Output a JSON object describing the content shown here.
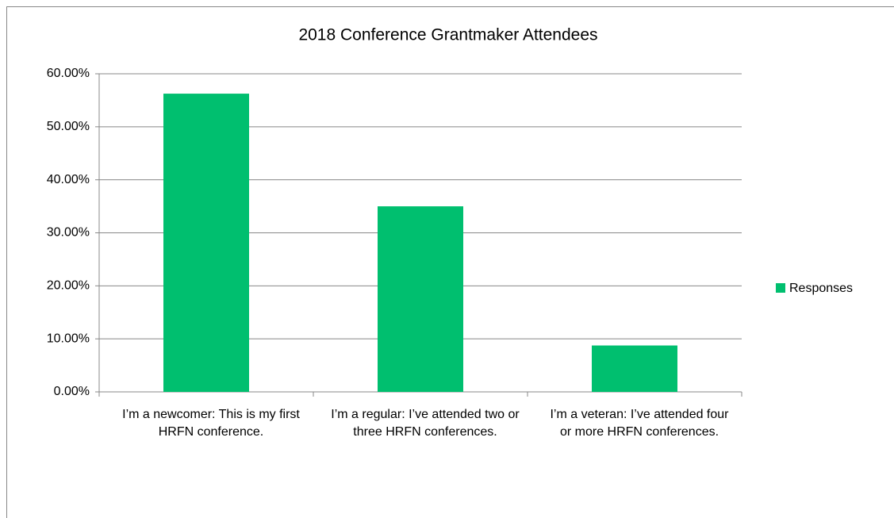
{
  "chart_data": {
    "type": "bar",
    "title": "2018 Conference Grantmaker Attendees",
    "categories": [
      "I’m a newcomer: This is my first HRFN conference.",
      "I’m a regular: I’ve attended two or three HRFN conferences.",
      "I’m a veteran: I’ve attended four or more HRFN conferences."
    ],
    "series": [
      {
        "name": "Responses",
        "color": "#00bf6f",
        "values": [
          56.25,
          35,
          8.75
        ]
      }
    ],
    "ylim": [
      0,
      60
    ],
    "yticks": [
      {
        "value": 0,
        "label": "0.00%"
      },
      {
        "value": 10,
        "label": "10.00%"
      },
      {
        "value": 20,
        "label": "20.00%"
      },
      {
        "value": 30,
        "label": "30.00%"
      },
      {
        "value": 40,
        "label": "40.00%"
      },
      {
        "value": 50,
        "label": "50.00%"
      },
      {
        "value": 60,
        "label": "60.00%"
      }
    ],
    "grid": true,
    "legend": "right"
  }
}
